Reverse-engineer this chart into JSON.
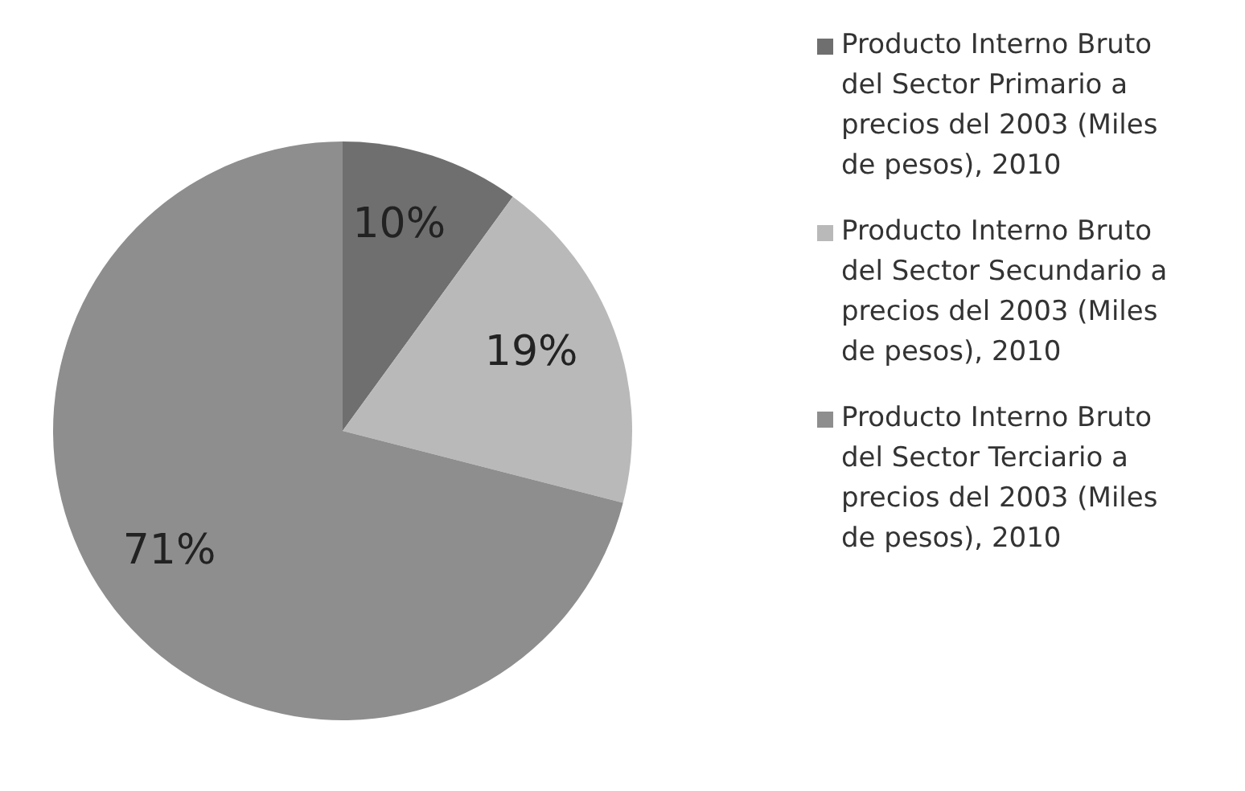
{
  "chart_data": {
    "type": "pie",
    "categories": [
      "Producto Interno Bruto del Sector Primario a precios del 2003 (Miles de pesos), 2010",
      "Producto Interno Bruto del Sector Secundario a precios del 2003 (Miles de pesos), 2010",
      "Producto Interno Bruto del Sector Terciario a precios del 2003 (Miles de pesos), 2010"
    ],
    "values": [
      10,
      19,
      71
    ],
    "colors": [
      "#6f6f6f",
      "#b9b9b9",
      "#8e8e8e"
    ],
    "value_labels": [
      "10%",
      "19%",
      "71%"
    ],
    "legend": "right"
  }
}
